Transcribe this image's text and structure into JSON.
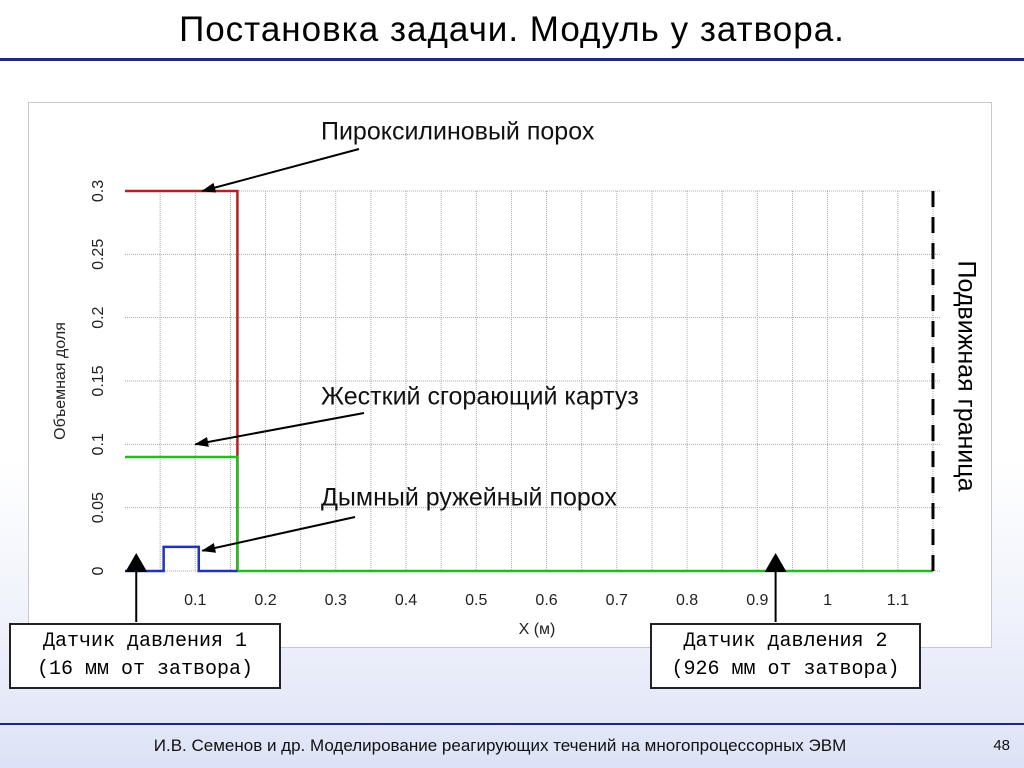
{
  "slide": {
    "title": "Постановка задачи. Модуль у затвора.",
    "footer": "И.В. Семенов и др. Моделирование реагирующих течений на многопроцессорных ЭВМ",
    "page_number": "48"
  },
  "sensors": [
    {
      "line1": "Датчик давления 1",
      "line2": "(16 мм от затвора)",
      "x": 0.016
    },
    {
      "line1": "Датчик давления 2",
      "line2": "(926 мм от затвора)",
      "x": 0.926
    }
  ],
  "chart_data": {
    "type": "line",
    "title": "",
    "xlabel": "X (м)",
    "ylabel": "Объемная доля",
    "xlim": [
      0,
      1.16
    ],
    "ylim": [
      0,
      0.3
    ],
    "x_ticks": [
      "0.1",
      "0.2",
      "0.3",
      "0.4",
      "0.5",
      "0.6",
      "0.7",
      "0.8",
      "0.9",
      "1",
      "1.1"
    ],
    "y_ticks": [
      "0",
      "0.05",
      "0.1",
      "0.15",
      "0.2",
      "0.25",
      "0.3"
    ],
    "grid": true,
    "series": [
      {
        "color": "#b22222",
        "points": [
          [
            0,
            0.3
          ],
          [
            0.16,
            0.3
          ],
          [
            0.16,
            0
          ]
        ]
      },
      {
        "color": "#22bb22",
        "points": [
          [
            0,
            0.09
          ],
          [
            0.16,
            0.09
          ],
          [
            0.16,
            0
          ],
          [
            1.15,
            0
          ]
        ]
      },
      {
        "color": "#2233bb",
        "points": [
          [
            0,
            0
          ],
          [
            0.055,
            0
          ],
          [
            0.055,
            0.019
          ],
          [
            0.105,
            0.019
          ],
          [
            0.105,
            0
          ],
          [
            0.16,
            0
          ]
        ]
      }
    ],
    "boundary": {
      "x": 1.15,
      "label": "Подвижная граница"
    },
    "annotations": [
      {
        "text": "Пироксилиновый порох",
        "target": [
          0.11,
          0.3
        ]
      },
      {
        "text": "Жесткий сгорающий картуз",
        "target": [
          0.1,
          0.1
        ]
      },
      {
        "text": "Дымный ружейный порох",
        "target": [
          0.11,
          0.016
        ]
      }
    ]
  }
}
